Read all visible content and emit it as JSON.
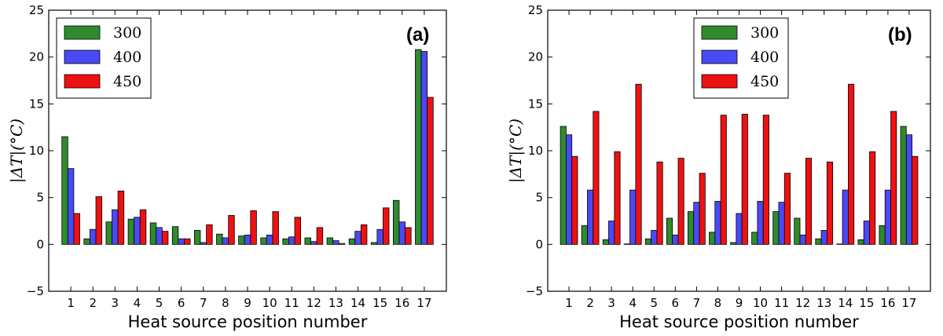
{
  "chart_data": [
    {
      "type": "bar",
      "panel": "(a)",
      "xlabel": "Heat source position number",
      "ylabel": "|ΔT|(°C)",
      "ylim": [
        -5,
        25
      ],
      "yticks": [
        -5,
        0,
        5,
        10,
        15,
        20,
        25
      ],
      "categories": [
        "1",
        "2",
        "3",
        "4",
        "5",
        "6",
        "7",
        "8",
        "9",
        "10",
        "11",
        "12",
        "13",
        "14",
        "15",
        "16",
        "17"
      ],
      "legend_position": "top-left",
      "series": [
        {
          "name": "300",
          "color": "#2e8b2e",
          "values": [
            11.5,
            0.6,
            2.4,
            2.7,
            2.3,
            1.9,
            1.5,
            1.1,
            0.9,
            0.7,
            0.6,
            0.7,
            0.7,
            0.6,
            0.2,
            4.7,
            20.8
          ]
        },
        {
          "name": "400",
          "color": "#4a4af5",
          "values": [
            8.1,
            1.6,
            3.7,
            2.9,
            1.8,
            0.6,
            0.2,
            0.7,
            1.0,
            1.0,
            0.8,
            0.3,
            0.4,
            1.4,
            1.6,
            2.4,
            20.6
          ]
        },
        {
          "name": "450",
          "color": "#ee1111",
          "values": [
            3.3,
            5.1,
            5.7,
            3.7,
            1.4,
            0.6,
            2.1,
            3.1,
            3.6,
            3.5,
            2.9,
            1.8,
            0.1,
            2.1,
            3.9,
            1.8,
            15.7
          ]
        }
      ]
    },
    {
      "type": "bar",
      "panel": "(b)",
      "xlabel": "Heat source position number",
      "ylabel": "|ΔT|(°C)",
      "ylim": [
        -5,
        25
      ],
      "yticks": [
        -5,
        0,
        5,
        10,
        15,
        20,
        25
      ],
      "categories": [
        "1",
        "2",
        "3",
        "4",
        "5",
        "6",
        "7",
        "8",
        "9",
        "10",
        "11",
        "12",
        "13",
        "14",
        "15",
        "16",
        "17"
      ],
      "legend_position": "top-center",
      "series": [
        {
          "name": "300",
          "color": "#2e8b2e",
          "values": [
            12.6,
            2.0,
            0.5,
            0.05,
            0.6,
            2.8,
            3.5,
            1.3,
            0.2,
            1.3,
            3.5,
            2.8,
            0.6,
            0.05,
            0.5,
            2.0,
            12.6
          ]
        },
        {
          "name": "400",
          "color": "#4a4af5",
          "values": [
            11.7,
            5.8,
            2.5,
            5.8,
            1.5,
            1.0,
            4.5,
            4.6,
            3.3,
            4.6,
            4.5,
            1.0,
            1.5,
            5.8,
            2.5,
            5.8,
            11.7
          ]
        },
        {
          "name": "450",
          "color": "#ee1111",
          "values": [
            9.4,
            14.2,
            9.9,
            17.1,
            8.8,
            9.2,
            7.6,
            13.8,
            13.9,
            13.8,
            7.6,
            9.2,
            8.8,
            17.1,
            9.9,
            14.2,
            9.4
          ]
        }
      ]
    }
  ]
}
